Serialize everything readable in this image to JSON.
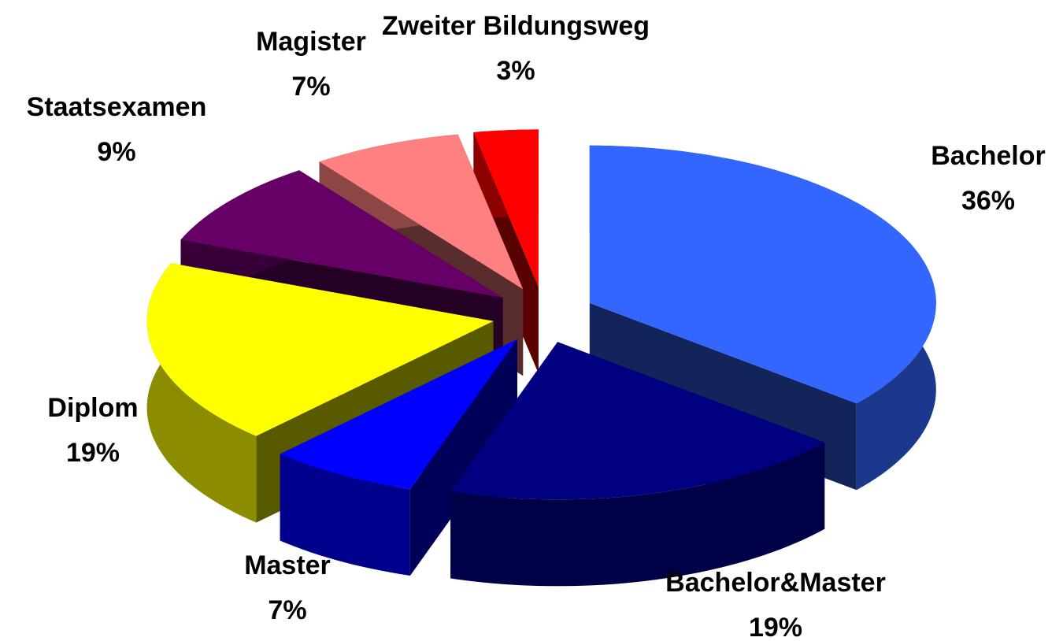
{
  "chart_data": {
    "type": "pie3d",
    "categories": [
      "Bachelor",
      "Bachelor&Master",
      "Master",
      "Diplom",
      "Staatsexamen",
      "Magister",
      "Zweiter Bildungsweg"
    ],
    "values": [
      36,
      19,
      7,
      19,
      9,
      7,
      3
    ],
    "value_labels": [
      "36%",
      "19%",
      "7%",
      "19%",
      "9%",
      "7%",
      "3%"
    ],
    "colors": [
      "#3366ff",
      "#000080",
      "#0000ff",
      "#ffff00",
      "#660066",
      "#ff8080",
      "#ff0000"
    ]
  }
}
